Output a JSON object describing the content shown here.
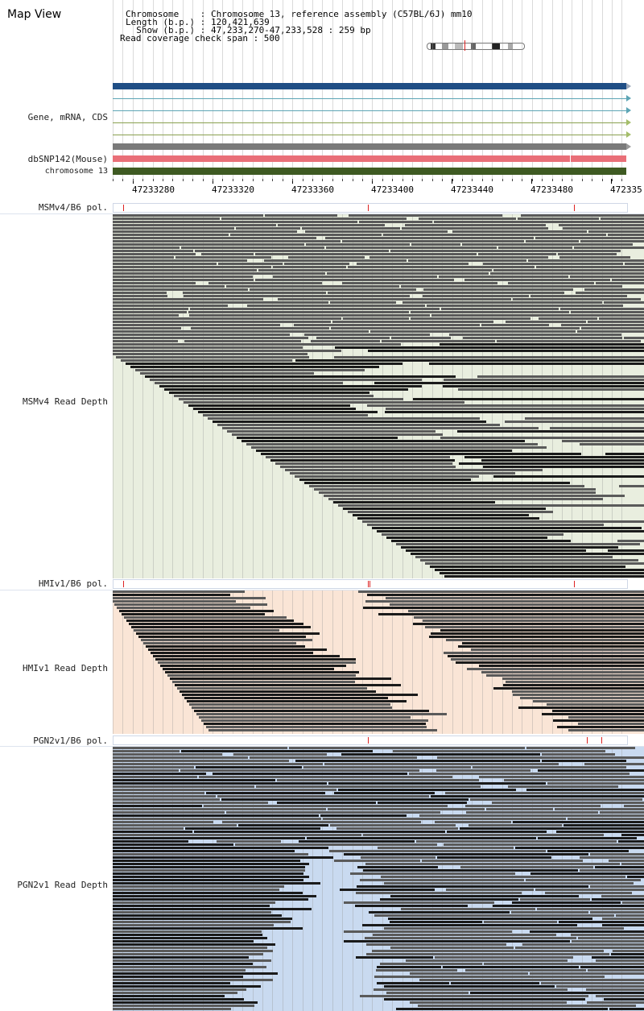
{
  "app": {
    "title": "Map View"
  },
  "header": {
    "chromosome_line": "Chromosome    : Chromosome 13, reference assembly (C57BL/6J) mm10",
    "length_line": "Length (b.p.) : 120,421,639",
    "show_line": "  Show (b.p.) : 47,233,270-47,233,528 : 259 bp",
    "coverage_line": "Read coverage check span : 500"
  },
  "tracks": {
    "gene": "Gene, mRNA, CDS",
    "snp": "dbSNP142(Mouse)",
    "chromosome": "chromosome 13"
  },
  "axis": {
    "ticks": [
      "47233280",
      "47233320",
      "47233360",
      "47233400",
      "47233440",
      "47233480",
      "472335"
    ]
  },
  "panels": {
    "msm_pol": "MSMv4/B6 pol.",
    "msm_depth": "MSMv4 Read Depth",
    "hmi_pol": "HMIv1/B6 pol.",
    "hmi_depth": "HMIv1 Read Depth",
    "pgn_pol": "PGN2v1/B6 pol.",
    "pgn_depth": "PGN2v1 Read Depth"
  },
  "colors": {
    "msm_bg": "#e9eedf",
    "hmi_bg": "#fae5d6",
    "pgn_bg": "#c9daf0",
    "read_gray": "#5a5a5a",
    "read_black": "#1a1a1a",
    "gene_blue": "#1f4e85",
    "snp_red": "#e96f78",
    "chrom_green": "#3e5a22"
  }
}
